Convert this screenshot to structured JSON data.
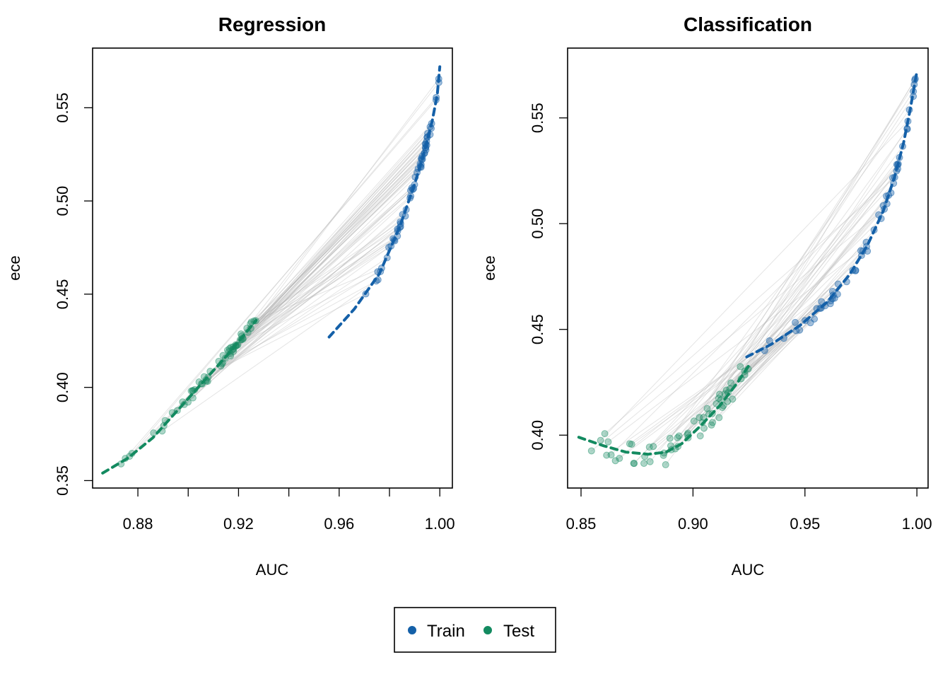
{
  "colors": {
    "train": "#1460A8",
    "test": "#138A60",
    "pair_line": "#B3B3B3"
  },
  "legend": {
    "items": [
      {
        "label": "Train",
        "color": "#1460A8"
      },
      {
        "label": "Test",
        "color": "#138A60"
      }
    ]
  },
  "chart_data": [
    {
      "type": "scatter",
      "title": "Regression",
      "xlabel": "AUC",
      "ylabel": "ece",
      "xlim": [
        0.862,
        1.005
      ],
      "ylim": [
        0.346,
        0.582
      ],
      "xticks": [
        0.86,
        0.88,
        0.9,
        0.92,
        0.94,
        0.96,
        0.98,
        1.0
      ],
      "xtick_labels": [
        "",
        "0.88",
        "",
        "0.92",
        "",
        "0.96",
        "",
        "1.00"
      ],
      "yticks": [
        0.35,
        0.4,
        0.45,
        0.5,
        0.55
      ],
      "ytick_labels": [
        "0.35",
        "0.40",
        "0.45",
        "0.50",
        "0.55"
      ],
      "grid": false,
      "test_x_range": [
        0.866,
        0.927
      ],
      "test_y_range": [
        0.354,
        0.436
      ],
      "train_x_range": [
        0.956,
        1.0
      ],
      "train_y_range": [
        0.427,
        0.575
      ],
      "series": [
        {
          "name": "Train",
          "trend": [
            [
              0.956,
              0.427
            ],
            [
              0.966,
              0.442
            ],
            [
              0.976,
              0.461
            ],
            [
              0.984,
              0.486
            ],
            [
              0.99,
              0.509
            ],
            [
              0.994,
              0.527
            ],
            [
              0.997,
              0.543
            ],
            [
              0.999,
              0.557
            ],
            [
              1.0,
              0.572
            ]
          ]
        },
        {
          "name": "Test",
          "trend": [
            [
              0.866,
              0.354
            ],
            [
              0.876,
              0.362
            ],
            [
              0.886,
              0.373
            ],
            [
              0.896,
              0.388
            ],
            [
              0.906,
              0.403
            ],
            [
              0.916,
              0.418
            ],
            [
              0.927,
              0.436
            ]
          ]
        }
      ]
    },
    {
      "type": "scatter",
      "title": "Classification",
      "xlabel": "AUC",
      "ylabel": "ece",
      "xlim": [
        0.844,
        1.005
      ],
      "ylim": [
        0.375,
        0.583
      ],
      "xticks": [
        0.85,
        0.9,
        0.95,
        1.0
      ],
      "xtick_labels": [
        "0.85",
        "0.90",
        "0.95",
        "1.00"
      ],
      "yticks": [
        0.4,
        0.45,
        0.5,
        0.55
      ],
      "ytick_labels": [
        "0.40",
        "0.45",
        "0.50",
        "0.55"
      ],
      "grid": false,
      "test_x_range": [
        0.849,
        0.925
      ],
      "test_y_range": [
        0.382,
        0.434
      ],
      "train_x_range": [
        0.924,
        1.0
      ],
      "train_y_range": [
        0.433,
        0.576
      ],
      "series": [
        {
          "name": "Train",
          "trend": [
            [
              0.924,
              0.437
            ],
            [
              0.935,
              0.443
            ],
            [
              0.948,
              0.452
            ],
            [
              0.96,
              0.463
            ],
            [
              0.97,
              0.476
            ],
            [
              0.978,
              0.49
            ],
            [
              0.985,
              0.506
            ],
            [
              0.99,
              0.522
            ],
            [
              0.994,
              0.538
            ],
            [
              0.997,
              0.554
            ],
            [
              1.0,
              0.572
            ]
          ]
        },
        {
          "name": "Test",
          "trend": [
            [
              0.849,
              0.399
            ],
            [
              0.86,
              0.395
            ],
            [
              0.87,
              0.392
            ],
            [
              0.88,
              0.391
            ],
            [
              0.888,
              0.392
            ],
            [
              0.895,
              0.396
            ],
            [
              0.903,
              0.404
            ],
            [
              0.912,
              0.414
            ],
            [
              0.92,
              0.425
            ],
            [
              0.925,
              0.433
            ]
          ]
        }
      ]
    }
  ]
}
